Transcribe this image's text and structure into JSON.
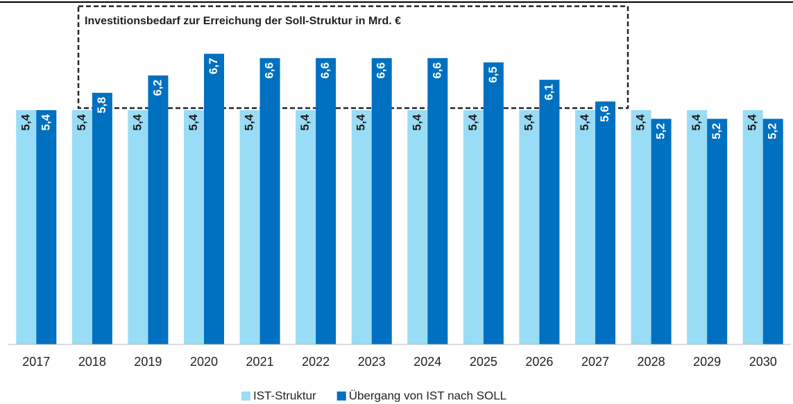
{
  "chart_data": {
    "type": "bar",
    "annotation": "Investitionsbedarf zur Erreichung der Soll-Struktur in Mrd. €",
    "categories": [
      "2017",
      "2018",
      "2019",
      "2020",
      "2021",
      "2022",
      "2023",
      "2024",
      "2025",
      "2026",
      "2027",
      "2028",
      "2029",
      "2030"
    ],
    "series": [
      {
        "name": "IST-Struktur",
        "color": "#99dcf5",
        "values": [
          5.4,
          5.4,
          5.4,
          5.4,
          5.4,
          5.4,
          5.4,
          5.4,
          5.4,
          5.4,
          5.4,
          5.4,
          5.4,
          5.4
        ],
        "value_labels": [
          "5,4",
          "5,4",
          "5,4",
          "5,4",
          "5,4",
          "5,4",
          "5,4",
          "5,4",
          "5,4",
          "5,4",
          "5,4",
          "5,4",
          "5,4",
          "5,4"
        ]
      },
      {
        "name": "Übergang von IST nach SOLL",
        "color": "#0070c0",
        "values": [
          5.4,
          5.8,
          6.2,
          6.7,
          6.6,
          6.6,
          6.6,
          6.6,
          6.5,
          6.1,
          5.6,
          5.2,
          5.2,
          5.2
        ],
        "value_labels": [
          "5,4",
          "5,8",
          "6,2",
          "6,7",
          "6,6",
          "6,6",
          "6,6",
          "6,6",
          "6,5",
          "6,1",
          "5,6",
          "5,2",
          "5,2",
          "5,2"
        ]
      }
    ],
    "legend": "bottom"
  }
}
